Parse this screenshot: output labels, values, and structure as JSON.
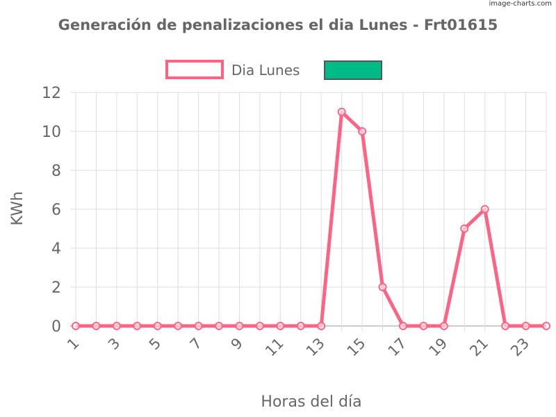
{
  "watermark": "image-charts.com",
  "chart_data": {
    "type": "line",
    "title": "Generación de penalizaciones el dia Lunes - Frt01615",
    "xlabel": "Horas del día",
    "ylabel": "KWh",
    "x": [
      1,
      2,
      3,
      4,
      5,
      6,
      7,
      8,
      9,
      10,
      11,
      12,
      13,
      14,
      15,
      16,
      17,
      18,
      19,
      20,
      21,
      22,
      23,
      24
    ],
    "x_tick_labels": [
      "1",
      "3",
      "5",
      "7",
      "9",
      "11",
      "13",
      "15",
      "17",
      "19",
      "21",
      "23"
    ],
    "y_tick_labels": [
      "0",
      "2",
      "4",
      "6",
      "8",
      "10",
      "12"
    ],
    "ylim": [
      0,
      12
    ],
    "grid": true,
    "legend_position": "top",
    "legend": [
      {
        "name": "Dia Lunes",
        "color": "#ff6384",
        "fill": "#ffffff"
      },
      {
        "name": "",
        "color": "#555555",
        "fill": "#00bb88"
      }
    ],
    "series": [
      {
        "name": "Dia Lunes",
        "color": "#ff6384",
        "values": [
          0,
          0,
          0,
          0,
          0,
          0,
          0,
          0,
          0,
          0,
          0,
          0,
          0,
          11,
          10,
          2,
          0,
          0,
          0,
          5,
          6,
          0,
          0,
          0
        ]
      }
    ]
  }
}
